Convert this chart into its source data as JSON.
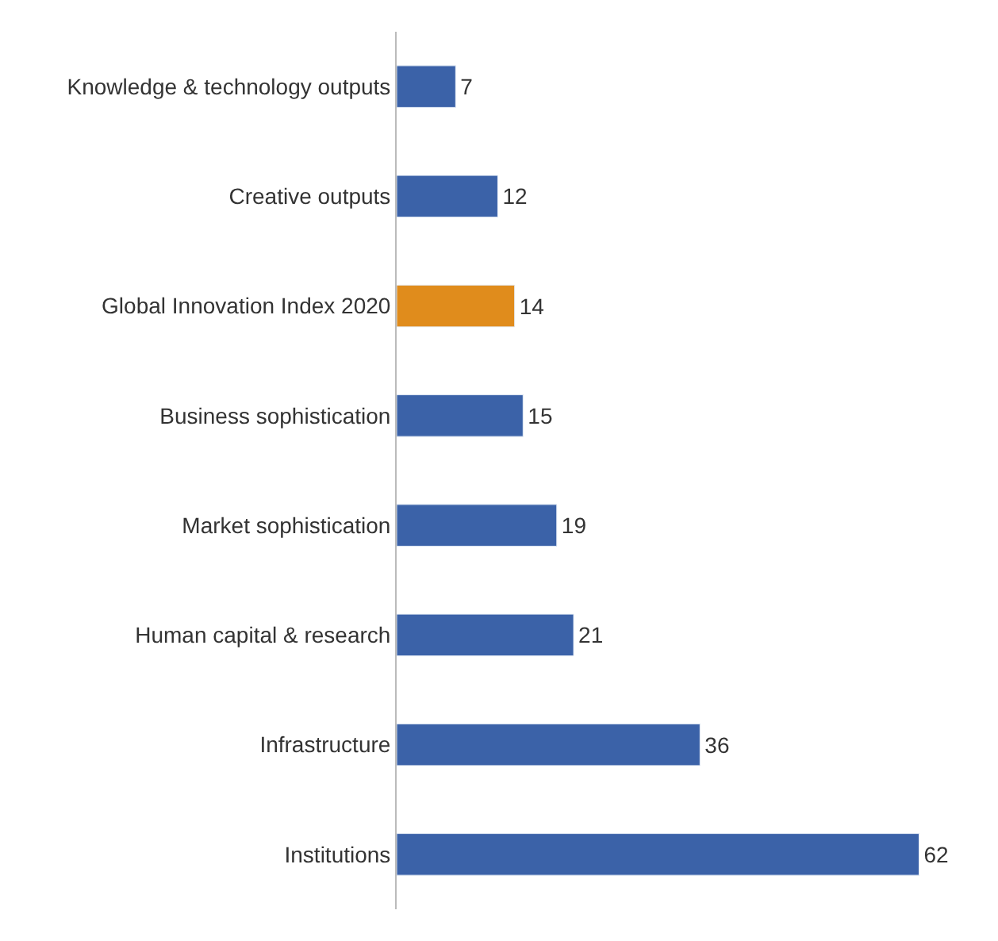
{
  "chart_data": {
    "type": "bar",
    "orientation": "horizontal",
    "categories": [
      "Knowledge & technology outputs",
      "Creative outputs",
      "Global Innovation Index 2020",
      "Business sophistication",
      "Market sophistication",
      "Human capital & research",
      "Infrastructure",
      "Institutions"
    ],
    "values": [
      7,
      12,
      14,
      15,
      19,
      21,
      36,
      62
    ],
    "colors": [
      "#3b62a8",
      "#3b62a8",
      "#e08c1c",
      "#3b62a8",
      "#3b62a8",
      "#3b62a8",
      "#3b62a8",
      "#3b62a8"
    ],
    "data_labels": true,
    "legend": false
  }
}
